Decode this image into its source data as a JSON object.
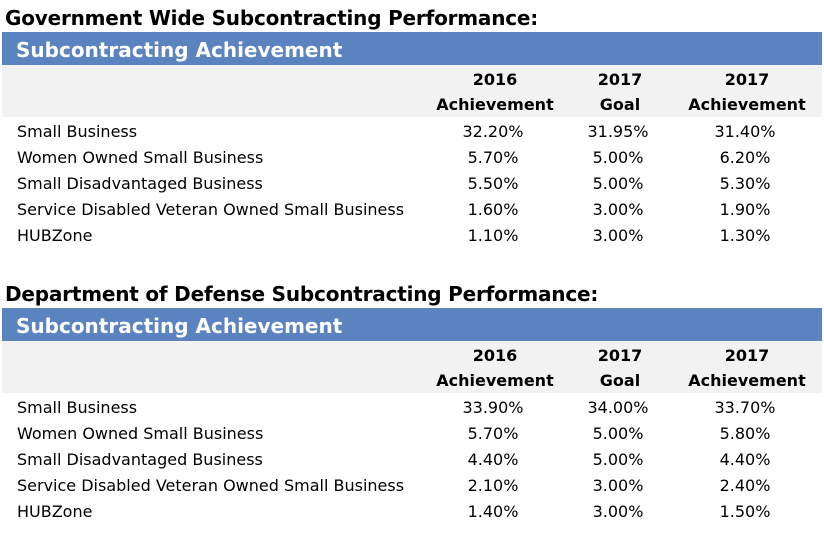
{
  "sections": [
    {
      "title": "Government Wide Subcontracting Performance:",
      "banner": "Subcontracting Achievement",
      "columns": [
        {
          "line1": "2016",
          "line2": "Achievement"
        },
        {
          "line1": "2017",
          "line2": "Goal"
        },
        {
          "line1": "2017",
          "line2": "Achievement"
        }
      ],
      "rows": [
        {
          "label": "Small Business",
          "values": [
            "32.20%",
            "31.95%",
            "31.40%"
          ]
        },
        {
          "label": "Women Owned Small Business",
          "values": [
            "5.70%",
            "5.00%",
            "6.20%"
          ]
        },
        {
          "label": "Small Disadvantaged Business",
          "values": [
            "5.50%",
            "5.00%",
            "5.30%"
          ]
        },
        {
          "label": "Service Disabled Veteran Owned Small Business",
          "values": [
            "1.60%",
            "3.00%",
            "1.90%"
          ]
        },
        {
          "label": "HUBZone",
          "values": [
            "1.10%",
            "3.00%",
            "1.30%"
          ]
        }
      ]
    },
    {
      "title": "Department of Defense Subcontracting Performance:",
      "banner": "Subcontracting Achievement",
      "columns": [
        {
          "line1": "2016",
          "line2": "Achievement"
        },
        {
          "line1": "2017",
          "line2": "Goal"
        },
        {
          "line1": "2017",
          "line2": "Achievement"
        }
      ],
      "rows": [
        {
          "label": "Small Business",
          "values": [
            "33.90%",
            "34.00%",
            "33.70%"
          ]
        },
        {
          "label": "Women Owned Small Business",
          "values": [
            "5.70%",
            "5.00%",
            "5.80%"
          ]
        },
        {
          "label": "Small Disadvantaged Business",
          "values": [
            "4.40%",
            "5.00%",
            "4.40%"
          ]
        },
        {
          "label": "Service Disabled Veteran Owned Small Business",
          "values": [
            "2.10%",
            "3.00%",
            "2.40%"
          ]
        },
        {
          "label": "HUBZone",
          "values": [
            "1.40%",
            "3.00%",
            "1.50%"
          ]
        }
      ]
    }
  ],
  "colors": {
    "banner_bg": "#5b83c0",
    "banner_text": "#ffffff",
    "column_header_bg": "#f2f2f2"
  }
}
